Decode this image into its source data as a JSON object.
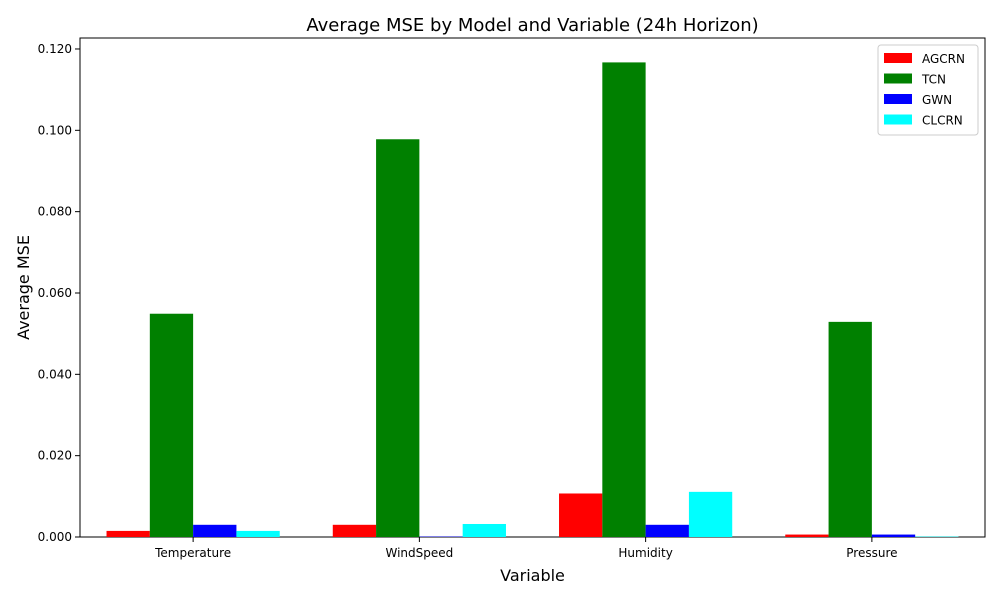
{
  "chart_data": {
    "type": "bar",
    "title": "Average MSE by Model and Variable (24h Horizon)",
    "xlabel": "Variable",
    "ylabel": "Average MSE",
    "categories": [
      "Temperature",
      "WindSpeed",
      "Humidity",
      "Pressure"
    ],
    "series": [
      {
        "name": "AGCRN",
        "color": "#ff0000",
        "values": [
          0.0015,
          0.003,
          0.0107,
          0.0006
        ]
      },
      {
        "name": "TCN",
        "color": "#008000",
        "values": [
          0.0549,
          0.0978,
          0.1167,
          0.0529
        ]
      },
      {
        "name": "GWN",
        "color": "#0000ff",
        "values": [
          0.003,
          0.0001,
          0.003,
          0.0006
        ]
      },
      {
        "name": "CLCRN",
        "color": "#00ffff",
        "values": [
          0.0015,
          0.0032,
          0.0111,
          0.0001
        ]
      }
    ],
    "ylim": [
      0,
      0.1227
    ],
    "yticks": [
      "0.000",
      "0.020",
      "0.040",
      "0.060",
      "0.080",
      "0.100",
      "0.120"
    ],
    "grid": false,
    "legend_position": "top-right"
  }
}
